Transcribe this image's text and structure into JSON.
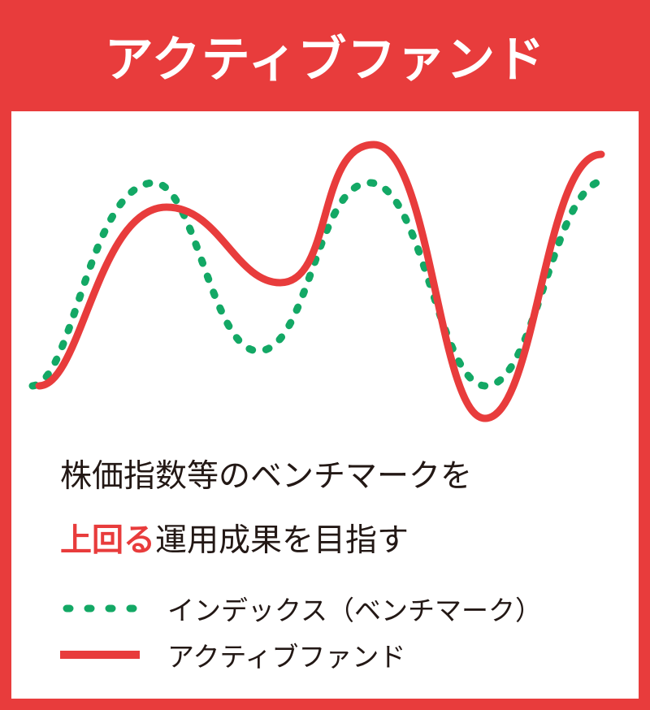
{
  "title": "アクティブファンド",
  "description": {
    "line1": "株価指数等のベンチマークを",
    "line2_highlight": "上回る",
    "line2_rest": "運用成果を目指す"
  },
  "legend": [
    {
      "label": "インデックス（ベンチマーク）",
      "style": "dotted",
      "color": "#13a865"
    },
    {
      "label": "アクティブファンド",
      "style": "solid",
      "color": "#e83c3c"
    }
  ],
  "colors": {
    "accent": "#e83c3c",
    "index": "#13a865",
    "text": "#231815"
  }
}
